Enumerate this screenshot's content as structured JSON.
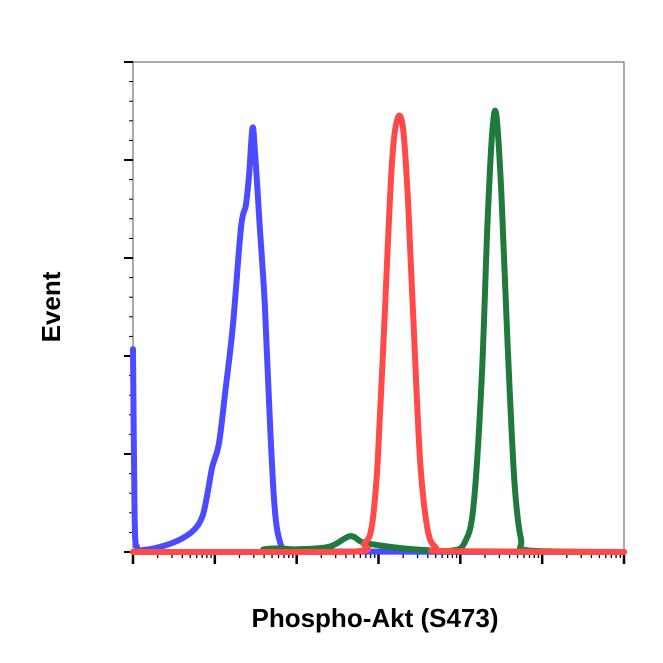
{
  "chart_data": {
    "type": "line",
    "title": "",
    "xlabel": "Phospho-Akt (S473)",
    "ylabel": "Event",
    "x_scale": "log",
    "x_range_decades": 6,
    "ylim": [
      0,
      100
    ],
    "grid": false,
    "legend": "none",
    "series": [
      {
        "color": "#4b4bff",
        "points": [
          [
            0.0,
            45
          ],
          [
            0.02,
            8
          ],
          [
            0.05,
            1
          ],
          [
            0.15,
            0.5
          ],
          [
            0.4,
            1.5
          ],
          [
            0.6,
            3
          ],
          [
            0.75,
            5
          ],
          [
            0.85,
            8
          ],
          [
            0.92,
            14
          ],
          [
            0.97,
            19
          ],
          [
            1.05,
            24
          ],
          [
            1.13,
            36
          ],
          [
            1.22,
            50
          ],
          [
            1.32,
            72
          ],
          [
            1.38,
            77
          ],
          [
            1.42,
            84
          ],
          [
            1.46,
            94
          ],
          [
            1.49,
            89
          ],
          [
            1.55,
            72
          ],
          [
            1.61,
            55
          ],
          [
            1.67,
            30
          ],
          [
            1.73,
            10
          ],
          [
            1.8,
            2
          ],
          [
            1.9,
            0.4
          ],
          [
            2.3,
            0.1
          ],
          [
            6,
            0
          ]
        ]
      },
      {
        "color": "#1f7a3c",
        "points": [
          [
            0.0,
            0
          ],
          [
            1.5,
            0
          ],
          [
            1.6,
            0.6
          ],
          [
            1.8,
            0.8
          ],
          [
            2.0,
            0.6
          ],
          [
            2.4,
            1.2
          ],
          [
            2.65,
            3.5
          ],
          [
            2.8,
            2.2
          ],
          [
            3.0,
            1.5
          ],
          [
            3.3,
            0.8
          ],
          [
            3.6,
            0.4
          ],
          [
            3.9,
            0.3
          ],
          [
            4.05,
            2
          ],
          [
            4.16,
            10
          ],
          [
            4.26,
            38
          ],
          [
            4.33,
            72
          ],
          [
            4.39,
            93
          ],
          [
            4.44,
            97
          ],
          [
            4.5,
            80
          ],
          [
            4.58,
            45
          ],
          [
            4.66,
            16
          ],
          [
            4.74,
            3
          ],
          [
            4.85,
            0.3
          ],
          [
            6,
            0
          ]
        ]
      },
      {
        "color": "#ff4a4a",
        "points": [
          [
            0.0,
            0
          ],
          [
            2.6,
            0
          ],
          [
            2.83,
            2
          ],
          [
            2.92,
            6
          ],
          [
            2.99,
            20
          ],
          [
            3.07,
            50
          ],
          [
            3.16,
            85
          ],
          [
            3.23,
            96
          ],
          [
            3.3,
            94
          ],
          [
            3.36,
            78
          ],
          [
            3.43,
            50
          ],
          [
            3.51,
            20
          ],
          [
            3.6,
            5
          ],
          [
            3.7,
            1
          ],
          [
            3.85,
            0.2
          ],
          [
            6,
            0
          ]
        ]
      }
    ]
  }
}
